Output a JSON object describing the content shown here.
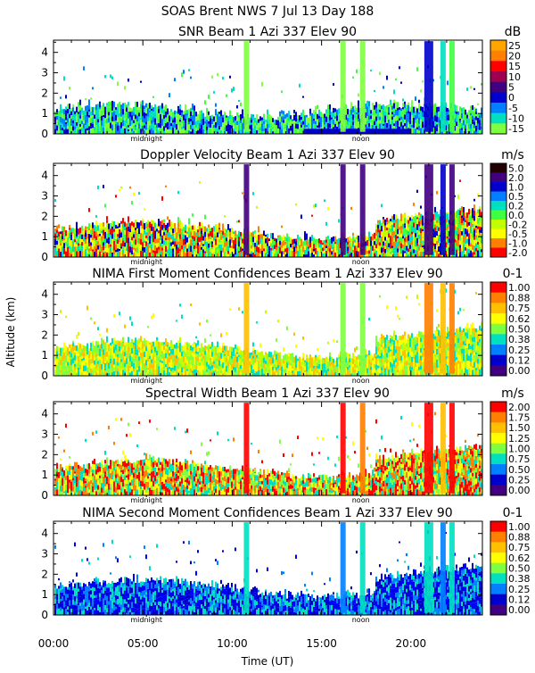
{
  "header": {
    "title": "SOAS Brent NWS    7 Jul 13 Day 188"
  },
  "axes": {
    "ylabel": "Altitude (km)",
    "xlabel": "Time (UT)",
    "x_ticks": [
      "00:00",
      "05:00",
      "10:00",
      "15:00",
      "20:00"
    ],
    "y_ticks": [
      "0",
      "1",
      "2",
      "3",
      "4"
    ],
    "marker_midnight": "midnight",
    "marker_noon": "noon"
  },
  "chart_data": [
    {
      "type": "heatmap",
      "title": "SNR Beam 1 Azi 337 Elev 90",
      "unit": "dB",
      "xlim": [
        0,
        24
      ],
      "ylim": [
        0,
        4.6
      ],
      "colorbar": {
        "labels": [
          "25",
          "20",
          "15",
          "10",
          "5",
          "0",
          "-5",
          "-10",
          "-15"
        ],
        "colors": [
          "#ffa500",
          "#ff7f00",
          "#ff0000",
          "#a00050",
          "#400080",
          "#0000cd",
          "#0080ff",
          "#00e0c0",
          "#80ff40"
        ]
      }
    },
    {
      "type": "heatmap",
      "title": "Doppler Velocity Beam 1 Azi 337 Elev 90",
      "unit": "m/s",
      "xlim": [
        0,
        24
      ],
      "ylim": [
        0,
        4.6
      ],
      "colorbar": {
        "labels": [
          "5.0",
          "2.0",
          "1.0",
          "0.5",
          "0.2",
          "0.0",
          "-0.2",
          "-0.5",
          "-1.0",
          "-2.0"
        ],
        "colors": [
          "#200000",
          "#400080",
          "#0000cd",
          "#0080ff",
          "#00e0c0",
          "#40ff40",
          "#c0ff00",
          "#ffff00",
          "#ff8000",
          "#ff0000"
        ]
      }
    },
    {
      "type": "heatmap",
      "title": "NIMA First Moment Confidences Beam 1 Azi 337 Elev 90",
      "unit": "0-1",
      "xlim": [
        0,
        24
      ],
      "ylim": [
        0,
        4.6
      ],
      "colorbar": {
        "labels": [
          "1.00",
          "0.88",
          "0.75",
          "0.62",
          "0.50",
          "0.38",
          "0.25",
          "0.12",
          "0.00"
        ],
        "colors": [
          "#ff0000",
          "#ff8000",
          "#ffc000",
          "#ffff00",
          "#80ff40",
          "#00e0c0",
          "#0080ff",
          "#0000cd",
          "#400080"
        ]
      }
    },
    {
      "type": "heatmap",
      "title": "Spectral Width Beam 1 Azi 337 Elev 90",
      "unit": "m/s",
      "xlim": [
        0,
        24
      ],
      "ylim": [
        0,
        4.6
      ],
      "colorbar": {
        "labels": [
          "2.00",
          "1.75",
          "1.50",
          "1.25",
          "1.00",
          "0.75",
          "0.50",
          "0.25",
          "0.00"
        ],
        "colors": [
          "#ff0000",
          "#ff8000",
          "#ffc000",
          "#ffff00",
          "#80ff40",
          "#00e0c0",
          "#0080ff",
          "#0000cd",
          "#400080"
        ]
      }
    },
    {
      "type": "heatmap",
      "title": "NIMA Second Moment Confidences Beam 1 Azi 337 Elev 90",
      "unit": "0-1",
      "xlim": [
        0,
        24
      ],
      "ylim": [
        0,
        4.6
      ],
      "colorbar": {
        "labels": [
          "1.00",
          "0.88",
          "0.75",
          "0.62",
          "0.50",
          "0.38",
          "0.25",
          "0.12",
          "0.00"
        ],
        "colors": [
          "#ff0000",
          "#ff8000",
          "#ffc000",
          "#ffff00",
          "#80ff40",
          "#00e0c0",
          "#0080ff",
          "#0000cd",
          "#400080"
        ]
      }
    }
  ]
}
